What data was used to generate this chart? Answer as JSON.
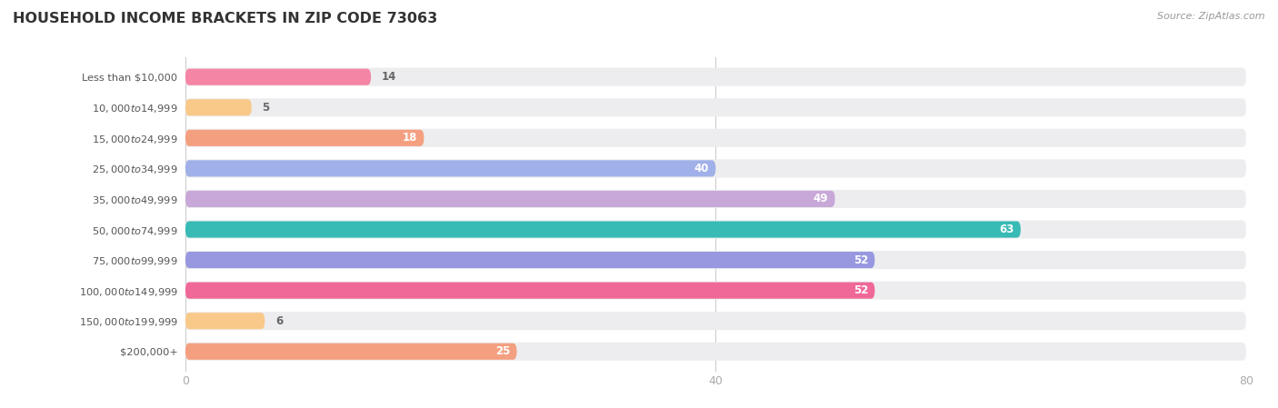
{
  "title": "HOUSEHOLD INCOME BRACKETS IN ZIP CODE 73063",
  "source": "Source: ZipAtlas.com",
  "categories": [
    "Less than $10,000",
    "$10,000 to $14,999",
    "$15,000 to $24,999",
    "$25,000 to $34,999",
    "$35,000 to $49,999",
    "$50,000 to $74,999",
    "$75,000 to $99,999",
    "$100,000 to $149,999",
    "$150,000 to $199,999",
    "$200,000+"
  ],
  "values": [
    14,
    5,
    18,
    40,
    49,
    63,
    52,
    52,
    6,
    25
  ],
  "bar_colors": [
    "#f585a5",
    "#f9c98a",
    "#f4a080",
    "#a0b0e8",
    "#c8a8d8",
    "#38bab5",
    "#9898e0",
    "#f06898",
    "#f9c98a",
    "#f4a080"
  ],
  "bg_row_color": "#ededef",
  "xlim_min": 0,
  "xlim_max": 80,
  "xticks": [
    0,
    40,
    80
  ],
  "label_color_inside": "#ffffff",
  "label_color_outside": "#666666",
  "title_color": "#333333",
  "source_color": "#999999",
  "background_color": "#ffffff",
  "inside_threshold": 15
}
